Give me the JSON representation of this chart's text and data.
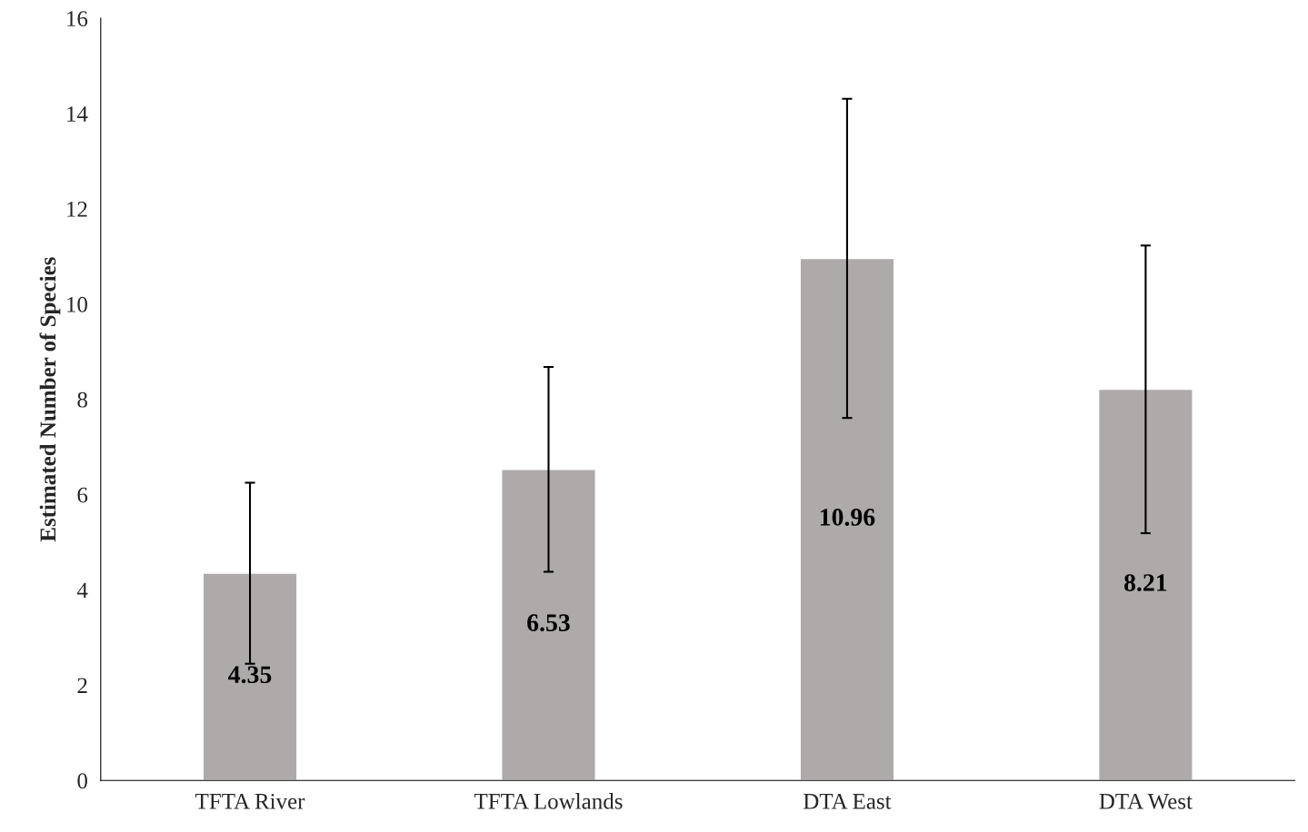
{
  "chart_data": {
    "type": "bar",
    "ylabel": "Estimated Number of Species",
    "categories": [
      "TFTA River",
      "TFTA Lowlands",
      "DTA East",
      "DTA West"
    ],
    "values": [
      4.35,
      6.53,
      10.96,
      8.21
    ],
    "errors": [
      1.9,
      2.15,
      3.35,
      3.02
    ],
    "color": "#aeaaaa",
    "ylim": [
      0,
      16
    ],
    "yticks": [
      0,
      2,
      4,
      6,
      8,
      10,
      12,
      14,
      16
    ],
    "data_labels": true,
    "grid": false
  }
}
